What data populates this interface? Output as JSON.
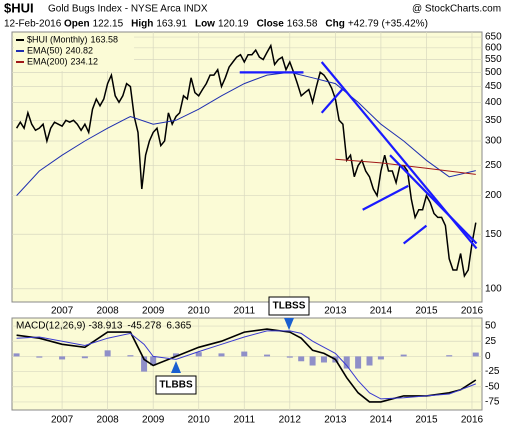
{
  "chart_data": {
    "type": "line",
    "title": "$HUI",
    "subtitle": "Gold Bugs Index - NYSE Arca INDX",
    "source": "@ StockCharts.com",
    "date": "12-Feb-2016",
    "quote": [
      {
        "label": "Open",
        "value": 122.15
      },
      {
        "label": "High",
        "value": 163.91
      },
      {
        "label": "Low",
        "value": 120.19
      },
      {
        "label": "Close",
        "value": 163.58
      },
      {
        "label": "Chg",
        "value": 42.79,
        "value_label": "+42.79 (+35.42%)"
      }
    ],
    "log_scale": true,
    "grid": true,
    "xlim": [
      2005.9,
      2016.22
    ],
    "xticks": [
      2007,
      2008,
      2009,
      2010,
      2011,
      2012,
      2013,
      2014,
      2015,
      2016
    ],
    "ylim": [
      92,
      660
    ],
    "yticks": [
      100,
      150,
      200,
      250,
      300,
      350,
      400,
      450,
      500,
      550,
      600,
      650
    ],
    "series": [
      {
        "name": "$HUI (Monthly)",
        "last": 163.58,
        "color": "#000000",
        "x": [
          2006,
          2006.0833,
          2006.1667,
          2006.25,
          2006.3333,
          2006.4167,
          2006.5,
          2006.5833,
          2006.6667,
          2006.75,
          2006.8333,
          2006.9167,
          2007,
          2007.0833,
          2007.1667,
          2007.25,
          2007.3333,
          2007.4167,
          2007.5,
          2007.5833,
          2007.6667,
          2007.75,
          2007.8333,
          2007.9167,
          2008,
          2008.0833,
          2008.1667,
          2008.25,
          2008.3333,
          2008.4167,
          2008.5,
          2008.5833,
          2008.6667,
          2008.75,
          2008.8333,
          2008.9167,
          2009,
          2009.0833,
          2009.1667,
          2009.25,
          2009.3333,
          2009.4167,
          2009.5,
          2009.5833,
          2009.6667,
          2009.75,
          2009.8333,
          2009.9167,
          2010,
          2010.0833,
          2010.1667,
          2010.25,
          2010.3333,
          2010.4167,
          2010.5,
          2010.5833,
          2010.6667,
          2010.75,
          2010.8333,
          2010.9167,
          2011,
          2011.0833,
          2011.1667,
          2011.25,
          2011.3333,
          2011.4167,
          2011.5,
          2011.5833,
          2011.6667,
          2011.75,
          2011.8333,
          2011.9167,
          2012,
          2012.0833,
          2012.1667,
          2012.25,
          2012.3333,
          2012.4167,
          2012.5,
          2012.5833,
          2012.6667,
          2012.75,
          2012.8333,
          2012.9167,
          2013,
          2013.0833,
          2013.1667,
          2013.25,
          2013.3333,
          2013.4167,
          2013.5,
          2013.5833,
          2013.6667,
          2013.75,
          2013.8333,
          2013.9167,
          2014,
          2014.0833,
          2014.1667,
          2014.25,
          2014.3333,
          2014.4167,
          2014.5,
          2014.5833,
          2014.6667,
          2014.75,
          2014.8333,
          2014.9167,
          2015,
          2015.0833,
          2015.1667,
          2015.25,
          2015.3333,
          2015.4167,
          2015.5,
          2015.5833,
          2015.6667,
          2015.75,
          2015.8333,
          2015.9167,
          2016,
          2016.0833
        ],
        "values": [
          330,
          345,
          330,
          370,
          340,
          325,
          330,
          340,
          300,
          330,
          345,
          340,
          335,
          350,
          345,
          350,
          340,
          325,
          340,
          320,
          380,
          410,
          390,
          410,
          460,
          490,
          420,
          400,
          420,
          460,
          450,
          360,
          320,
          210,
          270,
          300,
          320,
          330,
          290,
          300,
          370,
          340,
          360,
          370,
          420,
          410,
          480,
          430,
          420,
          440,
          460,
          490,
          490,
          510,
          450,
          480,
          520,
          540,
          560,
          570,
          540,
          570,
          570,
          590,
          560,
          550,
          580,
          610,
          530,
          550,
          560,
          510,
          540,
          500,
          460,
          420,
          430,
          440,
          400,
          450,
          500,
          490,
          470,
          445,
          410,
          350,
          340,
          260,
          270,
          230,
          250,
          260,
          240,
          230,
          210,
          200,
          240,
          270,
          240,
          240,
          220,
          250,
          250,
          240,
          195,
          170,
          180,
          180,
          200,
          190,
          175,
          170,
          170,
          160,
          125,
          115,
          115,
          130,
          110,
          115,
          140,
          163.58
        ]
      },
      {
        "name": "EMA(50)",
        "last": 240.82,
        "color": "#1f2fb0",
        "x": [
          2006,
          2006.5,
          2007,
          2007.5,
          2008,
          2008.5,
          2009,
          2009.5,
          2010,
          2010.5,
          2011,
          2011.5,
          2012,
          2012.5,
          2013,
          2013.5,
          2014,
          2014.5,
          2015,
          2015.5,
          2016.0833
        ],
        "values": [
          200,
          240,
          270,
          300,
          330,
          360,
          340,
          350,
          380,
          420,
          460,
          490,
          500,
          480,
          460,
          400,
          340,
          300,
          260,
          230,
          240.82
        ]
      },
      {
        "name": "EMA(200)",
        "last": 234.12,
        "color": "#a01818",
        "x": [
          2013,
          2014,
          2015,
          2016.0833
        ],
        "values": [
          262,
          255,
          245,
          234.12
        ]
      }
    ],
    "trendlines": [
      {
        "x": [
          2010.9,
          2012.3
        ],
        "y": [
          500,
          500
        ]
      },
      {
        "x": [
          2012.7,
          2016.1
        ],
        "y": [
          540,
          135
        ]
      },
      {
        "x": [
          2012.7,
          2013.15
        ],
        "y": [
          370,
          440
        ]
      },
      {
        "x": [
          2013.6,
          2014.6
        ],
        "y": [
          180,
          215
        ]
      },
      {
        "x": [
          2014.5,
          2015.0
        ],
        "y": [
          140,
          160
        ]
      },
      {
        "x": [
          2014.2,
          2016.1
        ],
        "y": [
          270,
          140
        ]
      }
    ],
    "macd": {
      "label": "MACD(12,26,9)",
      "last": [
        -38.913,
        -45.278,
        6.365
      ],
      "ylim": [
        -85,
        60
      ],
      "yticks": [
        50,
        25,
        0,
        -25,
        -50,
        -75
      ],
      "x": [
        2006,
        2006.5,
        2007,
        2007.5,
        2008,
        2008.5,
        2008.8,
        2009,
        2009.5,
        2010,
        2010.5,
        2011,
        2011.5,
        2012,
        2012.25,
        2012.5,
        2012.75,
        2013,
        2013.25,
        2013.5,
        2013.75,
        2014,
        2014.5,
        2015,
        2015.5,
        2015.75,
        2016.0833
      ],
      "series": [
        {
          "name": "MACD",
          "color": "#000000",
          "values": [
            35,
            30,
            20,
            15,
            40,
            40,
            -5,
            -15,
            0,
            15,
            25,
            40,
            45,
            40,
            30,
            10,
            5,
            -5,
            -35,
            -60,
            -75,
            -75,
            -65,
            -65,
            -60,
            -55,
            -38.913
          ]
        },
        {
          "name": "Signal",
          "color": "#3a3ad0",
          "values": [
            30,
            32,
            25,
            18,
            30,
            38,
            20,
            0,
            -5,
            8,
            20,
            32,
            42,
            42,
            38,
            25,
            15,
            5,
            -15,
            -40,
            -60,
            -70,
            -68,
            -65,
            -62,
            -55,
            -45.278
          ]
        }
      ],
      "histogram": {
        "color": "#8f8fc8",
        "values": [
          5,
          -2,
          -5,
          -3,
          10,
          2,
          -25,
          -15,
          5,
          7,
          5,
          8,
          3,
          -2,
          -8,
          -15,
          -10,
          -10,
          -20,
          -20,
          -15,
          -5,
          3,
          0,
          2,
          0,
          6.365
        ]
      }
    },
    "annotations": [
      "TLBSS",
      "TLBBS"
    ]
  }
}
